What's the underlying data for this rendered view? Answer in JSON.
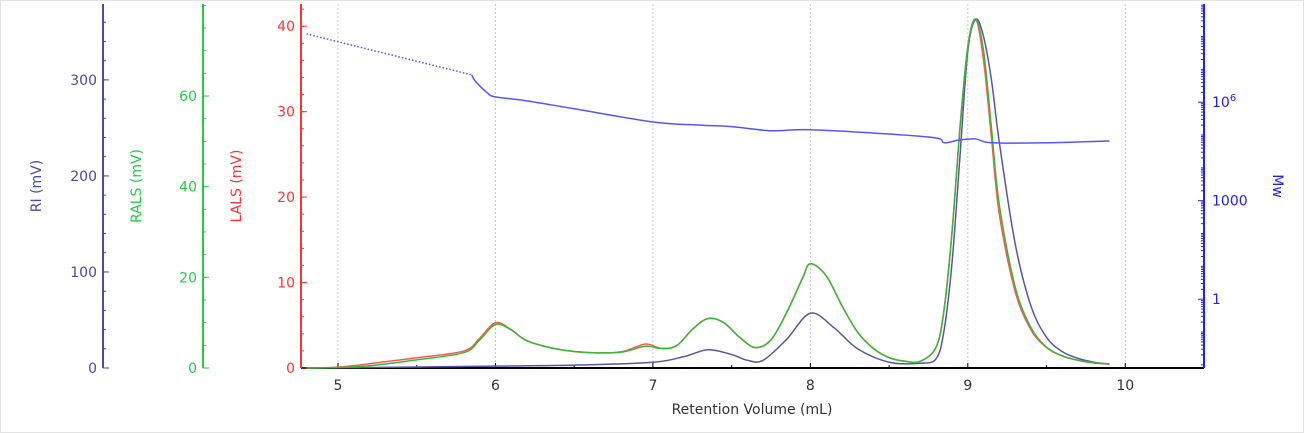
{
  "chart_data": {
    "type": "line",
    "title": "",
    "xlabel": "Retention Volume (mL)",
    "xlim": [
      4.765,
      10.5
    ],
    "xticks": [
      5,
      6,
      7,
      8,
      9,
      10
    ],
    "grid": "vertical dotted at x ticks",
    "axes": [
      {
        "id": "ri",
        "label": "RI (mV)",
        "color": "#4a4aa8",
        "ylim": [
          0,
          379
        ],
        "ticks": [
          0,
          100,
          200,
          300
        ],
        "minor": 20,
        "side": "left"
      },
      {
        "id": "rals",
        "label": "RALS (mV)",
        "color": "#22cc44",
        "ylim": [
          0,
          80.3
        ],
        "ticks": [
          0,
          20,
          40,
          60
        ],
        "minor": 5,
        "side": "left"
      },
      {
        "id": "lals",
        "label": "LALS (mV)",
        "color": "#ff3333",
        "ylim": [
          0,
          42.6
        ],
        "ticks": [
          0,
          10,
          20,
          30,
          40
        ],
        "minor": 2,
        "side": "left"
      },
      {
        "id": "mw",
        "label": "Mw",
        "color": "#2222ee",
        "scale": "log",
        "ylim": [
          0.008,
          980000000.0
        ],
        "ticks": [
          1,
          1000,
          1000000
        ],
        "tick_labels": [
          "1",
          "1000",
          "10^6"
        ],
        "side": "right"
      }
    ],
    "series": [
      {
        "name": "RI",
        "axis": "ri",
        "color": "#5a55a8",
        "x": [
          4.8,
          5.5,
          6.0,
          6.5,
          7.0,
          7.2,
          7.35,
          7.5,
          7.6,
          7.7,
          7.85,
          8.0,
          8.15,
          8.3,
          8.5,
          8.7,
          8.8,
          8.85,
          8.9,
          8.95,
          9.0,
          9.05,
          9.1,
          9.15,
          9.2,
          9.3,
          9.4,
          9.5,
          9.6,
          9.7,
          9.8,
          9.9
        ],
        "y": [
          0,
          1,
          2,
          3,
          6,
          12,
          19,
          14,
          8,
          8,
          30,
          57,
          42,
          20,
          6,
          5,
          10,
          40,
          110,
          220,
          330,
          363,
          345,
          300,
          235,
          130,
          65,
          32,
          17,
          10,
          6,
          4
        ]
      },
      {
        "name": "LALS",
        "axis": "lals",
        "color": "#ff5555",
        "x": [
          4.8,
          5.0,
          5.2,
          5.5,
          5.8,
          5.9,
          6.0,
          6.1,
          6.2,
          6.4,
          6.6,
          6.8,
          6.95,
          7.05,
          7.15,
          7.25,
          7.35,
          7.45,
          7.55,
          7.65,
          7.75,
          7.85,
          7.95,
          8.0,
          8.1,
          8.2,
          8.3,
          8.4,
          8.5,
          8.6,
          8.7,
          8.8,
          8.85,
          8.9,
          8.95,
          9.0,
          9.05,
          9.1,
          9.15,
          9.2,
          9.3,
          9.4,
          9.5,
          9.6,
          9.7,
          9.8,
          9.9
        ],
        "y": [
          0,
          0.1,
          0.5,
          1.2,
          2,
          3.5,
          5.3,
          4.5,
          3.2,
          2.2,
          1.8,
          1.9,
          2.8,
          2.3,
          2.6,
          4.5,
          5.8,
          5.3,
          3.6,
          2.4,
          3.3,
          6.5,
          10.5,
          12.2,
          10.8,
          7.3,
          4.2,
          2.3,
          1.2,
          0.8,
          0.8,
          2.5,
          7,
          16,
          28,
          37.5,
          40.8,
          36,
          27,
          18,
          9,
          4.5,
          2.4,
          1.4,
          0.9,
          0.6,
          0.5
        ]
      },
      {
        "name": "RALS",
        "axis": "rals",
        "color": "#33bb33",
        "x": [
          4.8,
          5.0,
          5.2,
          5.5,
          5.8,
          5.9,
          6.0,
          6.1,
          6.2,
          6.4,
          6.6,
          6.8,
          6.95,
          7.05,
          7.15,
          7.25,
          7.35,
          7.45,
          7.55,
          7.65,
          7.75,
          7.85,
          7.95,
          8.0,
          8.1,
          8.2,
          8.3,
          8.4,
          8.5,
          8.6,
          8.7,
          8.8,
          8.85,
          8.9,
          8.95,
          9.0,
          9.05,
          9.1,
          9.15,
          9.2,
          9.3,
          9.4,
          9.5,
          9.6,
          9.7,
          9.8,
          9.9
        ],
        "y": [
          0,
          0.1,
          0.5,
          1.8,
          3.4,
          6.2,
          9.6,
          8.4,
          6.0,
          4.1,
          3.4,
          3.5,
          4.8,
          4.3,
          4.9,
          8.5,
          10.9,
          10.0,
          6.8,
          4.5,
          6.2,
          12.3,
          19.8,
          23.0,
          20.4,
          13.8,
          7.9,
          4.3,
          2.3,
          1.5,
          1.5,
          4.7,
          13,
          30,
          53,
          71,
          77,
          70,
          53,
          36,
          18,
          9,
          4.6,
          2.7,
          1.7,
          1.1,
          0.9
        ]
      },
      {
        "name": "Mw (extrapolated)",
        "axis": "mw",
        "color": "#5555ff",
        "style": "dotted",
        "x": [
          4.8,
          5.85
        ],
        "y": [
          120000000.0,
          6800000.0
        ]
      },
      {
        "name": "Mw",
        "axis": "mw",
        "color": "#5555ff",
        "x": [
          5.85,
          5.87,
          5.95,
          6.0,
          6.2,
          6.5,
          7.0,
          7.3,
          7.5,
          7.75,
          8.0,
          8.5,
          8.8,
          8.85,
          8.95,
          9.05,
          9.15,
          9.5,
          9.9
        ],
        "y": [
          6800000.0,
          4500000.0,
          1900000.0,
          1450000.0,
          1100000.0,
          630000.0,
          250000.0,
          200000.0,
          180000.0,
          135000.0,
          145000.0,
          107000.0,
          81000.0,
          58000.0,
          71000.0,
          76000.0,
          58000.0,
          58000.0,
          66000.0
        ]
      }
    ]
  }
}
